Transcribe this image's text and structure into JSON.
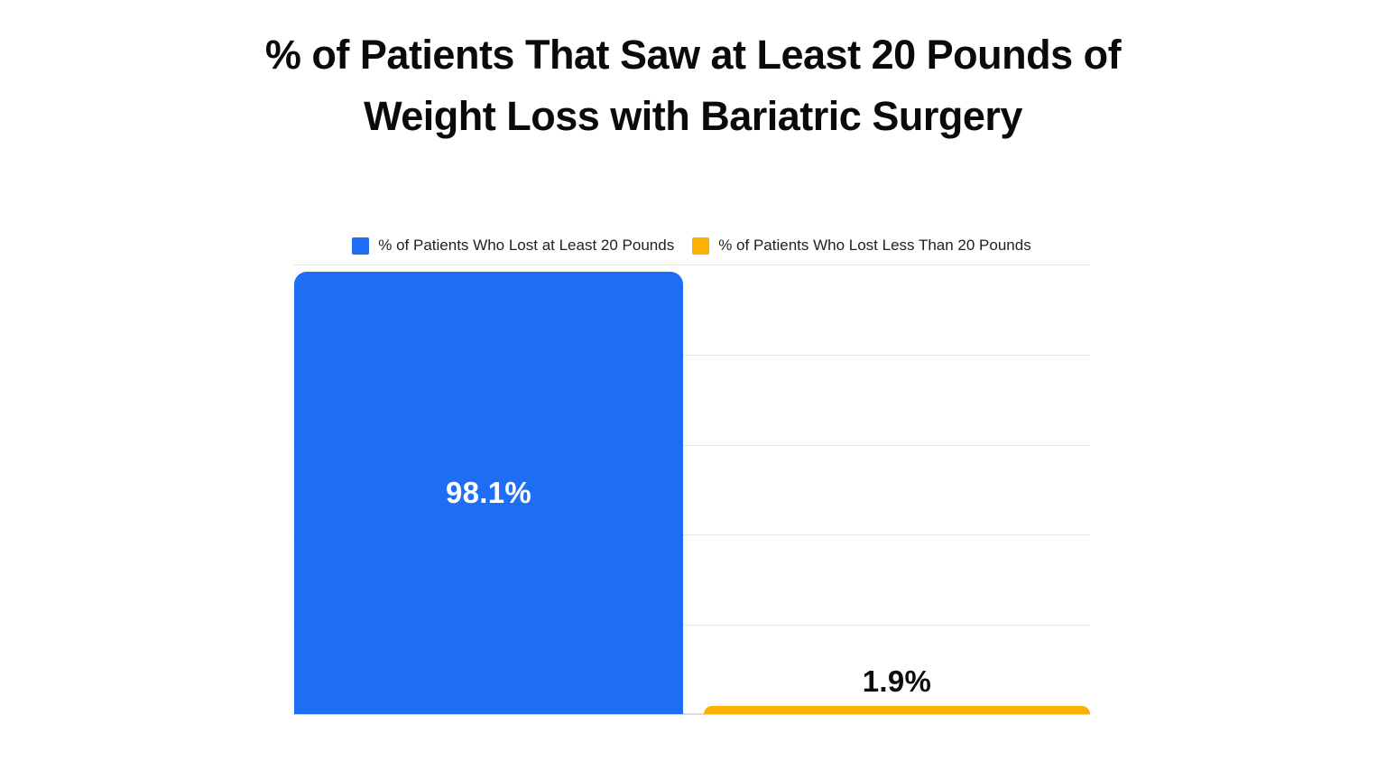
{
  "header": {
    "title_line1": "% of Patients That Saw at Least 20 Pounds of",
    "title_line2": "Weight Loss with Bariatric Surgery"
  },
  "chart_data": {
    "type": "bar",
    "title": "% of Patients That Saw at Least 20 Pounds of Weight Loss with Bariatric Surgery",
    "categories": [
      "% of Patients Who Lost at Least 20 Pounds",
      "% of Patients Who Lost Less Than 20 Pounds"
    ],
    "values": [
      98.1,
      1.9
    ],
    "value_labels": [
      "98.1%",
      "1.9%"
    ],
    "value_label_positions": [
      "inside-center",
      "above-bar"
    ],
    "value_label_colors": [
      "#FFFFFF",
      "#0D0D0D"
    ],
    "colors": [
      "#1E6EF5",
      "#FAB005"
    ],
    "xlabel": "",
    "ylabel": "",
    "ylim": [
      0,
      100
    ],
    "y_gridline_step_pct": 20,
    "grid": "horizontal",
    "axis_tick_labels_shown": false,
    "legend_position": "top-center",
    "bar_corner_style": "rounded-top"
  },
  "style": {
    "background": "#FFFFFF",
    "title_color": "#0A0A0A",
    "legend_text_color": "#212121",
    "gridline_color": "#E8E8E8",
    "baseline_color": "#DCDCDC"
  }
}
